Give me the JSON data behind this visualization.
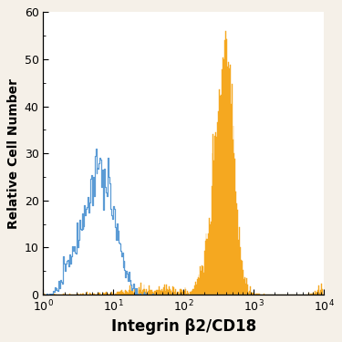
{
  "title": "",
  "xlabel": "Integrin β2/CD18",
  "ylabel": "Relative Cell Number",
  "xlim": [
    1,
    10000
  ],
  "ylim": [
    0,
    60
  ],
  "yticks": [
    0,
    10,
    20,
    30,
    40,
    50,
    60
  ],
  "background_color": "#ffffff",
  "fig_background_color": "#f5f0e8",
  "orange_color": "#f5a820",
  "blue_color": "#5b9bd5",
  "xlabel_fontsize": 12,
  "ylabel_fontsize": 10,
  "tick_fontsize": 9,
  "blue_peak_x": 7.0,
  "blue_peak_y": 31.0,
  "blue_sigma": 0.42,
  "orange_peak_x": 380.0,
  "orange_peak_y": 56.0,
  "orange_sigma": 0.28
}
